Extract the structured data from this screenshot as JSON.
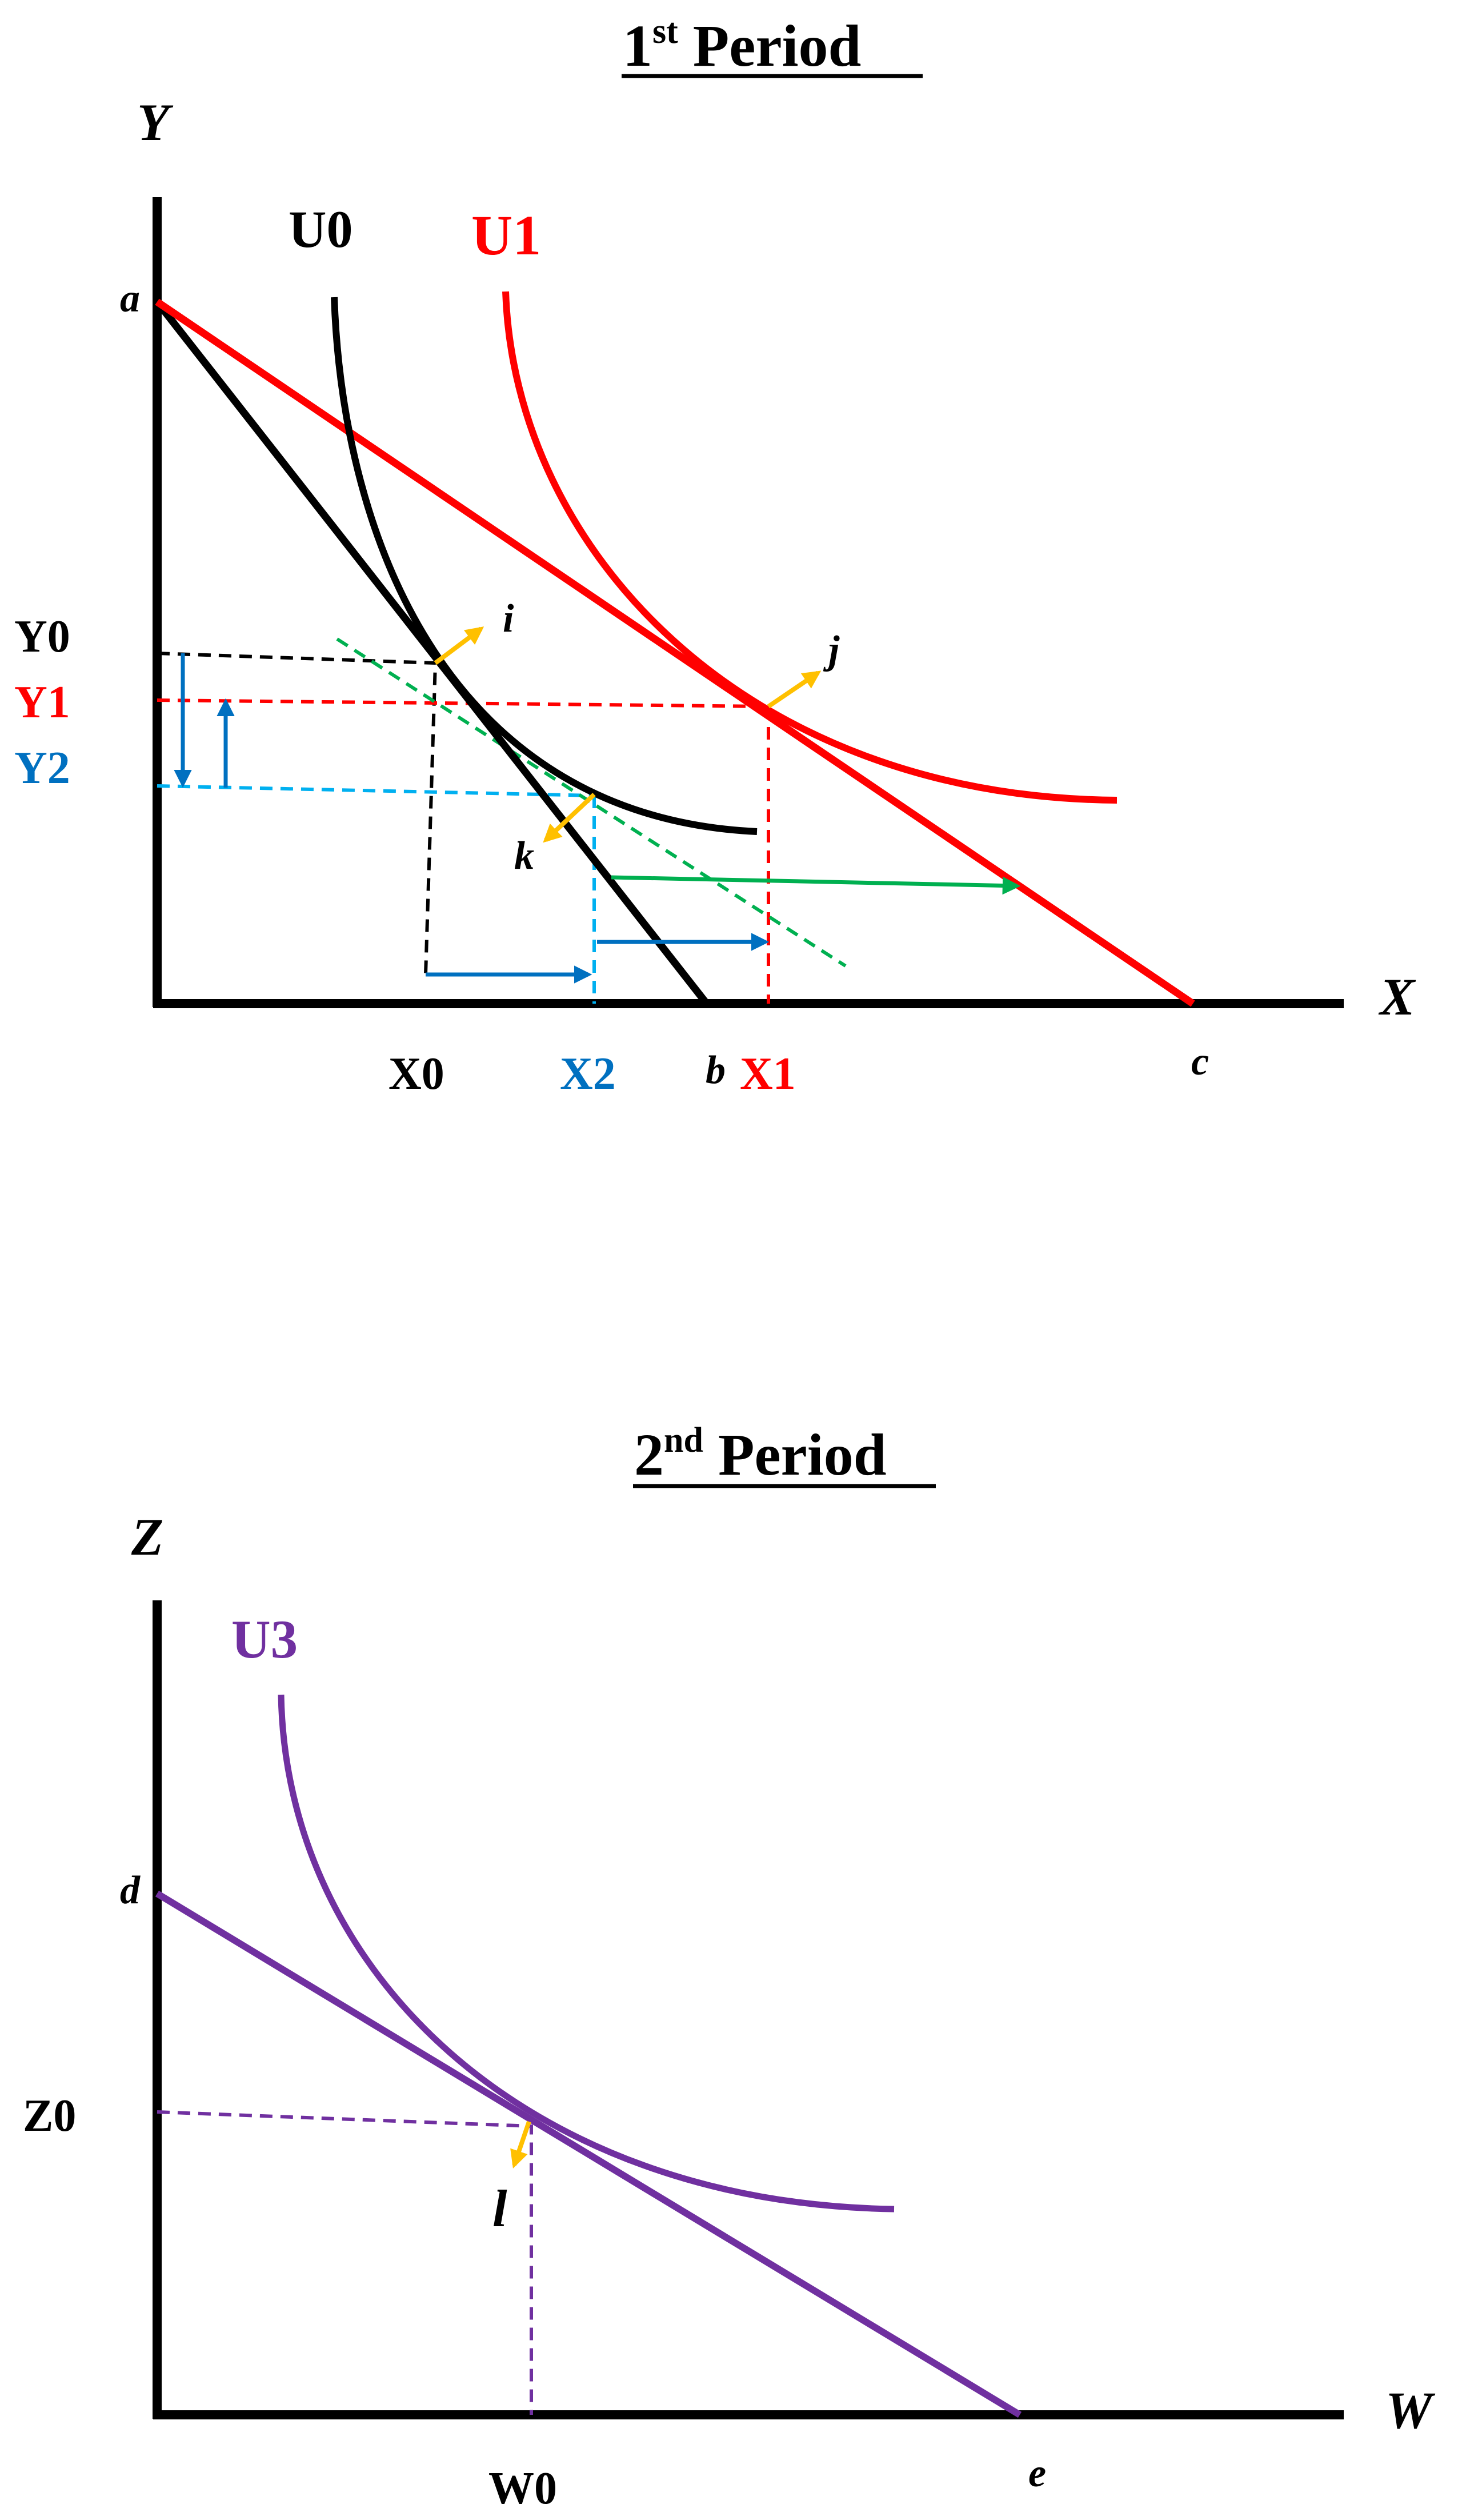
{
  "colors": {
    "black": "#000000",
    "red": "#ff0000",
    "blue": "#0070c0",
    "cyan": "#00b0f0",
    "green": "#00b050",
    "orange": "#ffc000",
    "purple": "#7030a0"
  },
  "period1": {
    "title_main": "1",
    "title_sup": "st",
    "title_rest": " Period",
    "axis_y": "Y",
    "axis_x": "X",
    "curve_u0": "U0",
    "curve_u1": "U1",
    "point_a": "a",
    "point_b": "b",
    "point_c": "c",
    "point_i": "i",
    "point_j": "j",
    "point_k": "k",
    "level_y0": "Y0",
    "level_y1": "Y1",
    "level_y2": "Y2",
    "level_x0": "X0",
    "level_x1": "X1",
    "level_x2": "X2"
  },
  "period2": {
    "title_main": "2",
    "title_sup": "nd",
    "title_rest": " Period",
    "axis_z": "Z",
    "axis_w": "W",
    "curve_u3": "U3",
    "point_d": "d",
    "point_e": "e",
    "point_l": "l",
    "level_z0": "Z0",
    "level_w0": "W0"
  }
}
